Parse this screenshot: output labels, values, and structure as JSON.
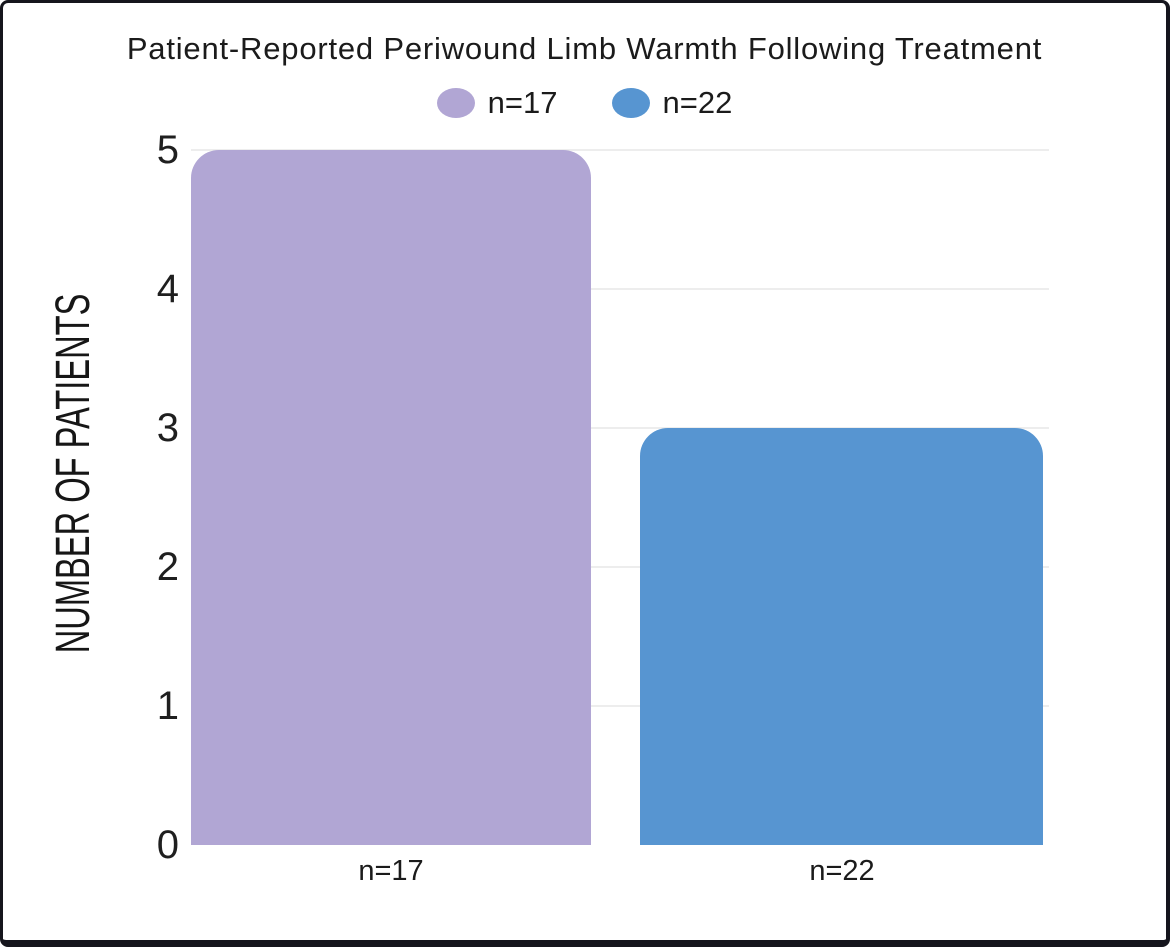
{
  "title": "Patient-Reported Periwound Limb Warmth Following Treatment",
  "chart_data": {
    "type": "bar",
    "title": "Patient-Reported Periwound Limb Warmth Following Treatment",
    "categories": [
      "n=17",
      "n=22"
    ],
    "values": [
      5,
      3
    ],
    "series_colors": [
      "#b1a6d4",
      "#5795d1"
    ],
    "legend": [
      {
        "label": "n=17",
        "color": "#b1a6d4"
      },
      {
        "label": "n=22",
        "color": "#5795d1"
      }
    ],
    "legend_position": "top-center",
    "xlabel": "",
    "ylabel": "NUMBER OF PATIENTS",
    "ylim": [
      0,
      5
    ],
    "yticks": [
      "5",
      "4",
      "3",
      "2",
      "1",
      "0"
    ],
    "grid": "horizontal-light"
  },
  "colors": {
    "background": "#ffffff",
    "frame_border": "#15151d",
    "gridline": "#ededed",
    "text": "#1b1b1b"
  }
}
